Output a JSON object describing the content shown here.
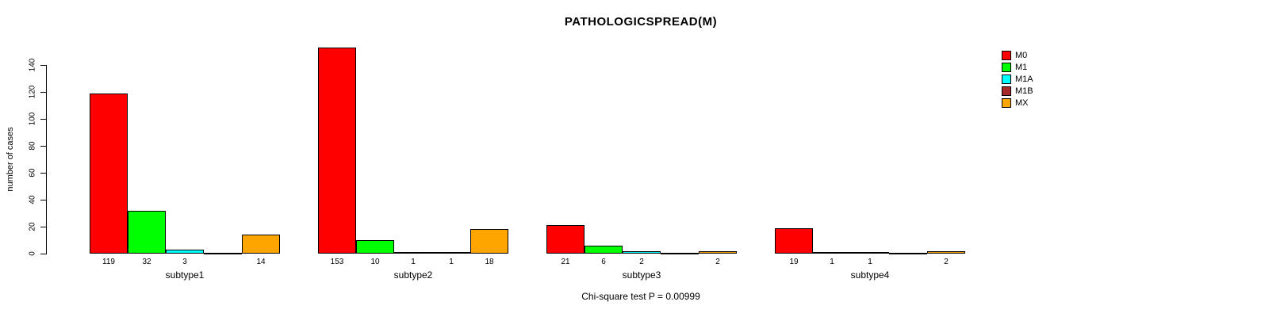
{
  "chart_data": {
    "type": "bar",
    "title": "PATHOLOGICSPREAD(M)",
    "ylabel": "number of cases",
    "note": "Chi-square test P = 0.00999",
    "categories": [
      "subtype1",
      "subtype2",
      "subtype3",
      "subtype4"
    ],
    "series": [
      {
        "name": "M0",
        "color": "#FF0000",
        "values": [
          119,
          153,
          21,
          19
        ]
      },
      {
        "name": "M1",
        "color": "#00FF00",
        "values": [
          32,
          10,
          6,
          1
        ]
      },
      {
        "name": "M1A",
        "color": "#00FFFF",
        "values": [
          3,
          1,
          2,
          1
        ]
      },
      {
        "name": "M1B",
        "color": "#A52A2A",
        "values": [
          0,
          1,
          0,
          0
        ]
      },
      {
        "name": "MX",
        "color": "#FFA500",
        "values": [
          14,
          18,
          2,
          2
        ]
      }
    ],
    "yticks": [
      0,
      20,
      40,
      60,
      80,
      100,
      120,
      140
    ],
    "ylim": [
      0,
      140
    ],
    "legend_position": "top-right",
    "legend_box": "none",
    "bar_border_color": "#000000",
    "show_value_labels": true,
    "grid": false
  }
}
